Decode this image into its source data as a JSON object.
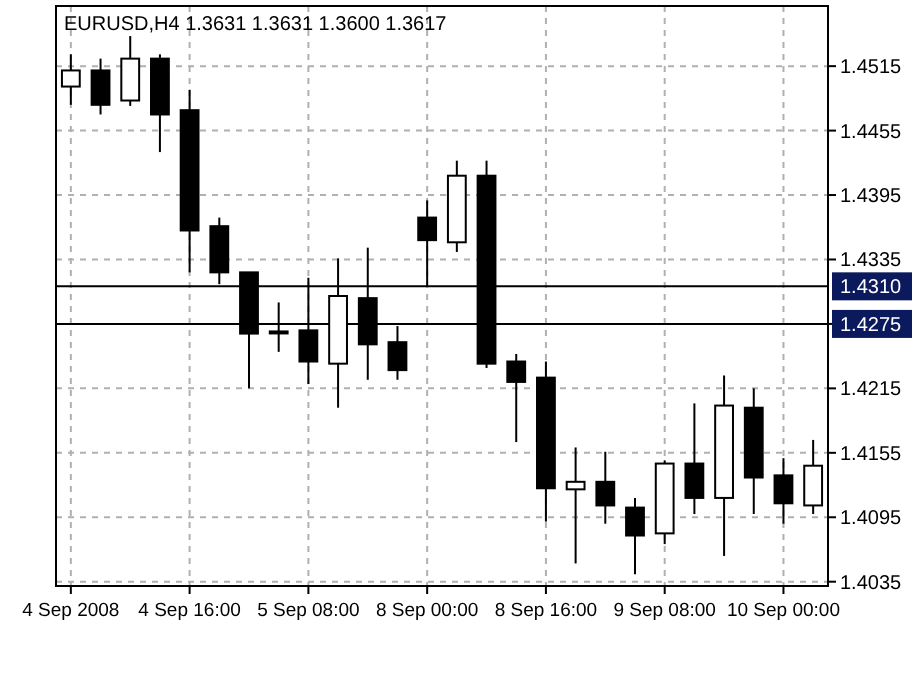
{
  "chart_data": {
    "type": "candlestick",
    "title": "EURUSD,H4  1.3631 1.3631 1.3600 1.3617",
    "categories": [
      "4 Sep 2008",
      null,
      null,
      null,
      "4 Sep 16:00",
      null,
      null,
      null,
      "5 Sep 08:00",
      null,
      null,
      null,
      "8 Sep 00:00",
      null,
      null,
      null,
      "8 Sep 16:00",
      null,
      null,
      null,
      "9 Sep 08:00",
      null,
      null,
      null,
      "10 Sep 00:00",
      null
    ],
    "ohlc": [
      [
        1.4496,
        1.4526,
        1.4479,
        1.4511
      ],
      [
        1.4511,
        1.4522,
        1.447,
        1.4479
      ],
      [
        1.4483,
        1.4543,
        1.4478,
        1.4522
      ],
      [
        1.4522,
        1.4526,
        1.4435,
        1.447
      ],
      [
        1.4474,
        1.4493,
        1.4323,
        1.4362
      ],
      [
        1.4366,
        1.4374,
        1.4312,
        1.4323
      ],
      [
        1.4323,
        1.4323,
        1.4215,
        1.4266
      ],
      [
        1.4268,
        1.4295,
        1.4249,
        1.4268
      ],
      [
        1.4269,
        1.4318,
        1.4219,
        1.424
      ],
      [
        1.4238,
        1.4336,
        1.4197,
        1.4301
      ],
      [
        1.4299,
        1.4346,
        1.4223,
        1.4256
      ],
      [
        1.4258,
        1.4273,
        1.4223,
        1.4232
      ],
      [
        1.4374,
        1.439,
        1.431,
        1.4353
      ],
      [
        1.4351,
        1.4427,
        1.4342,
        1.4413
      ],
      [
        1.4413,
        1.4427,
        1.4234,
        1.4238
      ],
      [
        1.424,
        1.4247,
        1.4165,
        1.4221
      ],
      [
        1.4225,
        1.424,
        1.4091,
        1.4122
      ],
      [
        1.4121,
        1.416,
        1.4052,
        1.4128
      ],
      [
        1.4128,
        1.4156,
        1.4089,
        1.4106
      ],
      [
        1.4104,
        1.4113,
        1.4042,
        1.4078
      ],
      [
        1.408,
        1.4148,
        1.407,
        1.4145
      ],
      [
        1.4145,
        1.4201,
        1.4098,
        1.4113
      ],
      [
        1.4113,
        1.4227,
        1.4059,
        1.4199
      ],
      [
        1.4197,
        1.4215,
        1.4098,
        1.4132
      ],
      [
        1.4134,
        1.415,
        1.4089,
        1.4108
      ],
      [
        1.4106,
        1.4167,
        1.4098,
        1.4143
      ]
    ],
    "ylim": [
      1.4031,
      1.4571
    ],
    "yticks": [
      1.4035,
      1.4095,
      1.4155,
      1.4215,
      1.4275,
      1.4335,
      1.4395,
      1.4455,
      1.4515
    ],
    "grid": true,
    "ref_lines": [
      {
        "axis": "y",
        "value": 1.431,
        "label": "1.4310"
      },
      {
        "axis": "y",
        "value": 1.4275,
        "label": "1.4275"
      }
    ]
  }
}
